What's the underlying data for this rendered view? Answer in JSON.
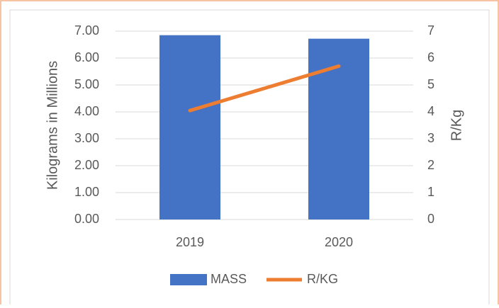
{
  "chart_data": {
    "type": "combo",
    "categories": [
      "2019",
      "2020"
    ],
    "series": [
      {
        "name": "MASS",
        "type": "bar",
        "color": "#4472c4",
        "values": [
          6.85,
          6.72
        ]
      },
      {
        "name": "R/KG",
        "type": "line",
        "axis": "y2",
        "color": "#ed7d31",
        "values": [
          4.05,
          5.7
        ]
      }
    ],
    "y_label": "Kilograms in Millions",
    "y2_label": "R/Kg",
    "ylim": [
      0,
      7
    ],
    "yticks": [
      {
        "value": 0,
        "label": "0.00"
      },
      {
        "value": 1,
        "label": "1.00"
      },
      {
        "value": 2,
        "label": "2.00"
      },
      {
        "value": 3,
        "label": "3.00"
      },
      {
        "value": 4,
        "label": "4.00"
      },
      {
        "value": 5,
        "label": "5.00"
      },
      {
        "value": 6,
        "label": "6.00"
      },
      {
        "value": 7,
        "label": "7.00"
      }
    ],
    "y2lim": [
      0,
      7
    ],
    "y2ticks": [
      0,
      1,
      2,
      3,
      4,
      5,
      6,
      7
    ],
    "grid": true,
    "legend": "bottom"
  }
}
